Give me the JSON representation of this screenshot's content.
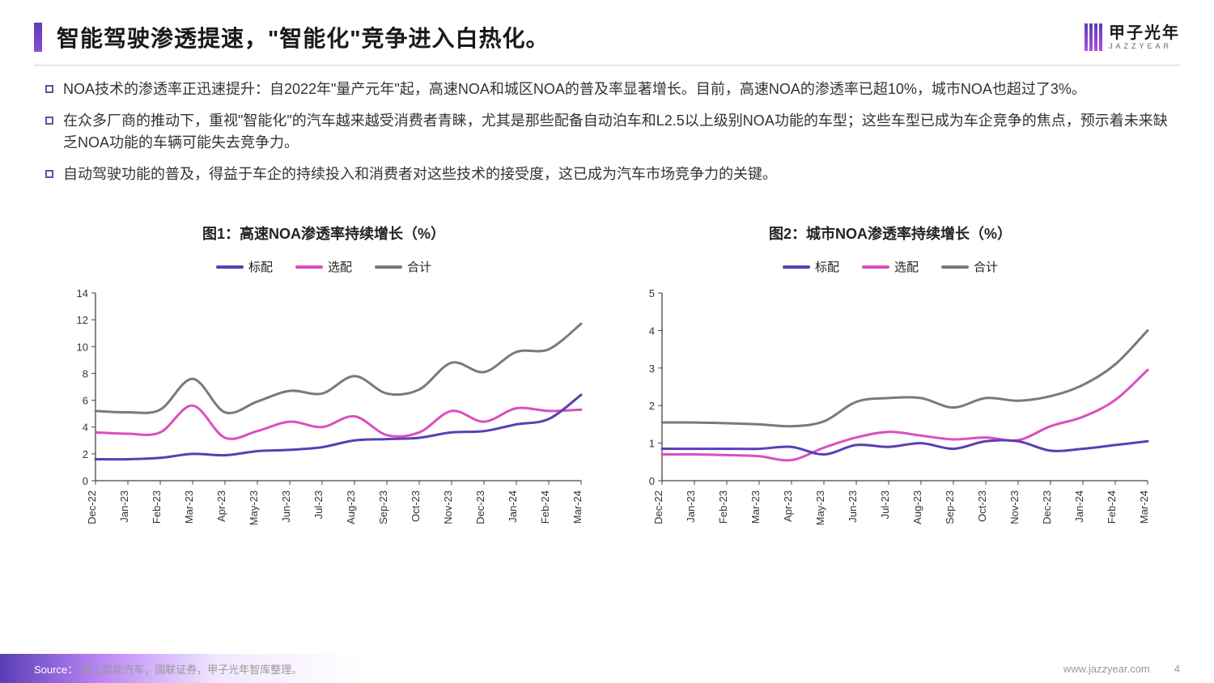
{
  "header": {
    "title": "智能驾驶渗透提速，\"智能化\"竞争进入白热化。",
    "logo_cn": "甲子光年",
    "logo_en": "JAZZYEAR",
    "accent_gradient_from": "#5b3db5",
    "accent_gradient_to": "#8a4fd5"
  },
  "bullets": [
    "NOA技术的渗透率正迅速提升：自2022年\"量产元年\"起，高速NOA和城区NOA的普及率显著增长。目前，高速NOA的渗透率已超10%，城市NOA也超过了3%。",
    "在众多厂商的推动下，重视\"智能化\"的汽车越来越受消费者青睐，尤其是那些配备自动泊车和L2.5以上级别NOA功能的车型；这些车型已成为车企竞争的焦点，预示着未来缺乏NOA功能的车辆可能失去竞争力。",
    "自动驾驶功能的普及，得益于车企的持续投入和消费者对这些技术的接受度，这已成为汽车市场竞争力的关键。"
  ],
  "bullet_marker": {
    "type": "square-outline",
    "color": "#5557a3",
    "fill": "#ffffff",
    "size": 10,
    "border": 2
  },
  "x_categories": [
    "Dec-22",
    "Jan-23",
    "Feb-23",
    "Mar-23",
    "Apr-23",
    "May-23",
    "Jun-23",
    "Jul-23",
    "Aug-23",
    "Sep-23",
    "Oct-23",
    "Nov-23",
    "Dec-23",
    "Jan-24",
    "Feb-24",
    "Mar-24"
  ],
  "legend_labels": {
    "standard": "标配",
    "optional": "选配",
    "total": "合计"
  },
  "series_colors": {
    "standard": "#5b3db5",
    "optional": "#d94fbd",
    "total": "#7a7a7a"
  },
  "chart1": {
    "type": "line",
    "title": "图1：高速NOA渗透率持续增长（%）",
    "ylim": [
      0,
      14
    ],
    "ytick_step": 2,
    "xlabel_rotation": -90,
    "label_fontsize": 13,
    "title_fontsize": 18,
    "line_width": 3,
    "smooth": true,
    "background_color": "#ffffff",
    "axis_color": "#444444",
    "grid": false,
    "series": {
      "standard": [
        1.6,
        1.6,
        1.7,
        2.0,
        1.9,
        2.2,
        2.3,
        2.5,
        3.0,
        3.1,
        3.2,
        3.6,
        3.7,
        4.2,
        4.6,
        6.4
      ],
      "optional": [
        3.6,
        3.5,
        3.6,
        5.6,
        3.2,
        3.7,
        4.4,
        4.0,
        4.8,
        3.4,
        3.6,
        5.2,
        4.4,
        5.4,
        5.2,
        5.3
      ],
      "total": [
        5.2,
        5.1,
        5.3,
        7.6,
        5.1,
        5.9,
        6.7,
        6.5,
        7.8,
        6.5,
        6.8,
        8.8,
        8.1,
        9.6,
        9.8,
        11.7
      ]
    }
  },
  "chart2": {
    "type": "line",
    "title": "图2：城市NOA渗透率持续增长（%）",
    "ylim": [
      0,
      5
    ],
    "ytick_step": 1,
    "xlabel_rotation": -90,
    "label_fontsize": 13,
    "title_fontsize": 18,
    "line_width": 3,
    "smooth": true,
    "background_color": "#ffffff",
    "axis_color": "#444444",
    "grid": false,
    "series": {
      "standard": [
        0.85,
        0.85,
        0.85,
        0.85,
        0.9,
        0.7,
        0.95,
        0.9,
        1.0,
        0.85,
        1.05,
        1.05,
        0.8,
        0.85,
        0.95,
        1.05
      ],
      "optional": [
        0.7,
        0.7,
        0.68,
        0.65,
        0.55,
        0.88,
        1.15,
        1.3,
        1.2,
        1.1,
        1.15,
        1.08,
        1.45,
        1.7,
        2.15,
        2.95
      ],
      "total": [
        1.55,
        1.55,
        1.53,
        1.5,
        1.45,
        1.58,
        2.1,
        2.2,
        2.2,
        1.95,
        2.2,
        2.13,
        2.25,
        2.55,
        3.1,
        4.0
      ]
    }
  },
  "footer": {
    "source_label": "Source：",
    "source_text": "高工智能汽车，国联证券，甲子光年智库整理。",
    "website": "www.jazzyear.com",
    "page": "4"
  }
}
